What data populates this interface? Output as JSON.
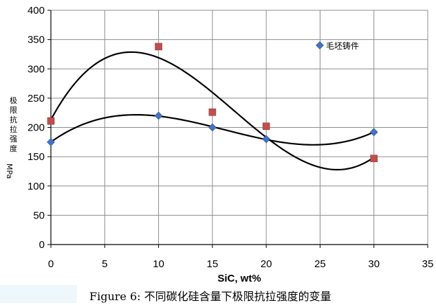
{
  "chart_data": {
    "type": "scatter",
    "title": "",
    "xlabel": "SiC, wt%",
    "ylabel": "极限抗拉强度 MPa",
    "xlim": [
      0,
      35
    ],
    "ylim": [
      0,
      400
    ],
    "x_ticks": [
      0,
      5,
      10,
      15,
      20,
      25,
      30,
      35
    ],
    "y_ticks": [
      0,
      50,
      100,
      150,
      200,
      250,
      300,
      350,
      400
    ],
    "grid": "both",
    "legend_position": "top-right",
    "series": [
      {
        "name": "毛坯铸件",
        "marker": "diamond",
        "color": "#4472c4",
        "x": [
          0,
          10,
          15,
          20,
          30
        ],
        "y": [
          175,
          220,
          200,
          180,
          192
        ],
        "trendline": "polynomial"
      },
      {
        "name": "",
        "marker": "square",
        "color": "#c0504d",
        "x": [
          0,
          10,
          15,
          20,
          30
        ],
        "y": [
          211,
          338,
          226,
          202,
          147
        ],
        "trendline": "polynomial"
      }
    ]
  },
  "caption": "Figure 6: 不同碳化硅含量下极限抗拉强度的变量"
}
